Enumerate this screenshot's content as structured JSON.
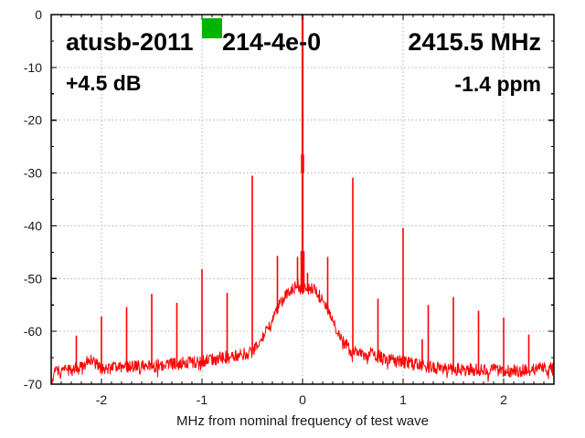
{
  "colors": {
    "trace": "#ff0000",
    "marker": "#00b400",
    "grid": "#b3b3b3",
    "frame": "#000000",
    "text": "#1a1a1a",
    "background": "#ffffff"
  },
  "chart_data": {
    "type": "line",
    "annotations": {
      "title_left": "atusb-2011",
      "title_right": "214-4e-0",
      "freq": "2415.5 MHz",
      "gain": "+4.5 dB",
      "offset": "-1.4 ppm"
    },
    "xlabel": "MHz from nominal frequency of test wave",
    "ylabel": "",
    "xlim": [
      -2.5,
      2.5
    ],
    "ylim": [
      -70,
      0
    ],
    "xticks": [
      -2,
      -1,
      0,
      1,
      2
    ],
    "xtick_labels": [
      "-2",
      "-1",
      "0",
      "1",
      "2"
    ],
    "yticks": [
      0,
      -10,
      -20,
      -30,
      -40,
      -50,
      -60,
      -70
    ],
    "ytick_labels": [
      "0",
      "-10",
      "-20",
      "-30",
      "-40",
      "-50",
      "-60",
      "-70"
    ],
    "x_minor_step": 0.1,
    "y_minor_step": 5,
    "grid": "dotted-at-major-ticks",
    "noise_halfwidth_db": 1.2,
    "envelope_db": [
      [
        -2.5,
        -69.6
      ],
      [
        -2.48,
        -68.2
      ],
      [
        -2.45,
        -67.5
      ],
      [
        -2.4,
        -67.3
      ],
      [
        -2.3,
        -67.2
      ],
      [
        -2.2,
        -67.0
      ],
      [
        -2.15,
        -65.8
      ],
      [
        -2.1,
        -64.9
      ],
      [
        -2.05,
        -66.3
      ],
      [
        -2.0,
        -67.0
      ],
      [
        -1.9,
        -66.9
      ],
      [
        -1.75,
        -66.8
      ],
      [
        -1.5,
        -66.6
      ],
      [
        -1.3,
        -66.2
      ],
      [
        -1.15,
        -65.9
      ],
      [
        -1.0,
        -65.6
      ],
      [
        -0.9,
        -65.3
      ],
      [
        -0.8,
        -65.0
      ],
      [
        -0.7,
        -64.7
      ],
      [
        -0.6,
        -64.4
      ],
      [
        -0.55,
        -64.2
      ],
      [
        -0.5,
        -63.8
      ],
      [
        -0.45,
        -62.9
      ],
      [
        -0.4,
        -61.3
      ],
      [
        -0.35,
        -59.6
      ],
      [
        -0.3,
        -57.6
      ],
      [
        -0.25,
        -55.5
      ],
      [
        -0.2,
        -54.0
      ],
      [
        -0.15,
        -52.8
      ],
      [
        -0.1,
        -52.0
      ],
      [
        -0.05,
        -51.3
      ],
      [
        -0.02,
        -51.6
      ],
      [
        0.0,
        -52.2
      ],
      [
        0.02,
        -51.8
      ],
      [
        0.05,
        -51.3
      ],
      [
        0.1,
        -52.0
      ],
      [
        0.15,
        -52.9
      ],
      [
        0.2,
        -54.2
      ],
      [
        0.25,
        -55.8
      ],
      [
        0.3,
        -57.9
      ],
      [
        0.35,
        -59.9
      ],
      [
        0.4,
        -61.5
      ],
      [
        0.45,
        -63.0
      ],
      [
        0.5,
        -63.9
      ],
      [
        0.55,
        -64.1
      ],
      [
        0.6,
        -64.3
      ],
      [
        0.7,
        -64.2
      ],
      [
        0.8,
        -64.9
      ],
      [
        0.9,
        -65.4
      ],
      [
        1.0,
        -65.8
      ],
      [
        1.15,
        -66.4
      ],
      [
        1.3,
        -66.8
      ],
      [
        1.5,
        -67.1
      ],
      [
        1.75,
        -67.3
      ],
      [
        2.0,
        -67.4
      ],
      [
        2.2,
        -67.4
      ],
      [
        2.3,
        -67.2
      ],
      [
        2.4,
        -66.8
      ],
      [
        2.43,
        -67.9
      ],
      [
        2.46,
        -66.3
      ],
      [
        2.5,
        -67.0
      ]
    ],
    "spikes_db": [
      [
        -2.25,
        -60.8
      ],
      [
        -2.0,
        -57.2
      ],
      [
        -1.75,
        -55.4
      ],
      [
        -1.5,
        -52.9
      ],
      [
        -1.25,
        -54.6
      ],
      [
        -1.0,
        -48.2
      ],
      [
        -0.75,
        -52.7
      ],
      [
        -0.5,
        -30.5
      ],
      [
        -0.25,
        -45.7
      ],
      [
        -0.05,
        -45.9
      ],
      [
        0.05,
        -48.9
      ],
      [
        0.25,
        -45.9
      ],
      [
        0.5,
        -30.9
      ],
      [
        0.75,
        -53.8
      ],
      [
        1.0,
        -40.4
      ],
      [
        1.19,
        -61.5
      ],
      [
        1.25,
        -55.0
      ],
      [
        1.5,
        -53.5
      ],
      [
        1.75,
        -56.1
      ],
      [
        2.0,
        -57.4
      ],
      [
        2.25,
        -60.6
      ]
    ],
    "center_spike": {
      "f": 0,
      "top_db": 0,
      "thick_segments_db": [
        [
          -26.5,
          -30.0,
          3.5
        ],
        [
          -44.8,
          -52.5,
          4.5
        ]
      ]
    }
  }
}
